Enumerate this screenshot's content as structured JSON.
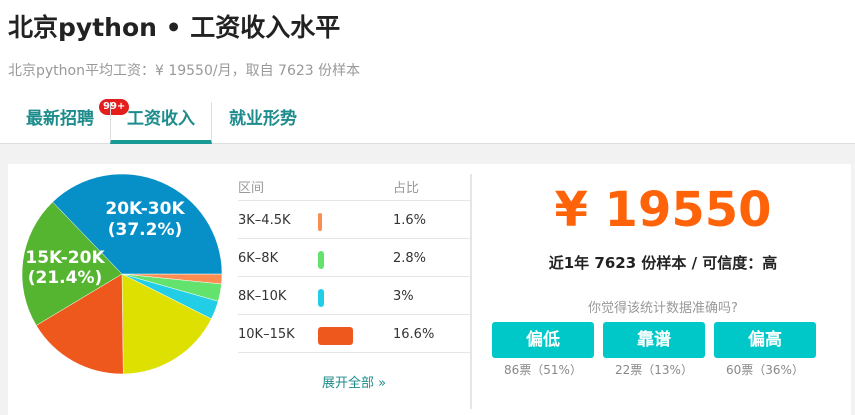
{
  "header": {
    "title": "北京python • 工资收入水平",
    "subtitle": "北京python平均工资：¥ 19550/月，取自 7623 份样本"
  },
  "tabs": [
    {
      "label": "最新招聘",
      "badge": "99+"
    },
    {
      "label": "工资收入",
      "active": true
    },
    {
      "label": "就业形势"
    }
  ],
  "chart_data": {
    "type": "pie",
    "slices": [
      {
        "name": "3K–4.5K",
        "value": 1.6,
        "color": "#fb8d52"
      },
      {
        "name": "6K–8K",
        "value": 2.8,
        "color": "#63e36e"
      },
      {
        "name": "8K–10K",
        "value": 3,
        "color": "#22cde6"
      },
      {
        "value": 17.4,
        "color": "#dde000"
      },
      {
        "name": "10K–15K",
        "value": 16.6,
        "color": "#ee581c"
      },
      {
        "name": "15K-20K",
        "value": 21.4,
        "color": "#55b531",
        "label": "15K-20K",
        "pct_label": "(21.4%)"
      },
      {
        "name": "20K-30K",
        "value": 37.2,
        "color": "#078fc7",
        "label": "20K-30K",
        "pct_label": "(37.2%)"
      }
    ]
  },
  "table": {
    "headers": [
      "区间",
      "占比"
    ],
    "rows": [
      {
        "range": "3K–4.5K",
        "pct": "1.6%",
        "value": 1.6,
        "color": "#fb8d52"
      },
      {
        "range": "6K–8K",
        "pct": "2.8%",
        "value": 2.8,
        "color": "#63e36e"
      },
      {
        "range": "8K–10K",
        "pct": "3%",
        "value": 3,
        "color": "#22cde6"
      },
      {
        "range": "10K–15K",
        "pct": "16.6%",
        "value": 16.6,
        "color": "#ee581c"
      }
    ],
    "more": "展开全部 »"
  },
  "summary": {
    "salary": "¥ 19550",
    "meta": "近1年 7623 份样本 / 可信度：高",
    "question": "你觉得该统计数据准确吗?",
    "votes": [
      {
        "label": "偏低",
        "count": "86票（51%）"
      },
      {
        "label": "靠谱",
        "count": "22票（13%）"
      },
      {
        "label": "偏高",
        "count": "60票（36%）"
      }
    ]
  }
}
